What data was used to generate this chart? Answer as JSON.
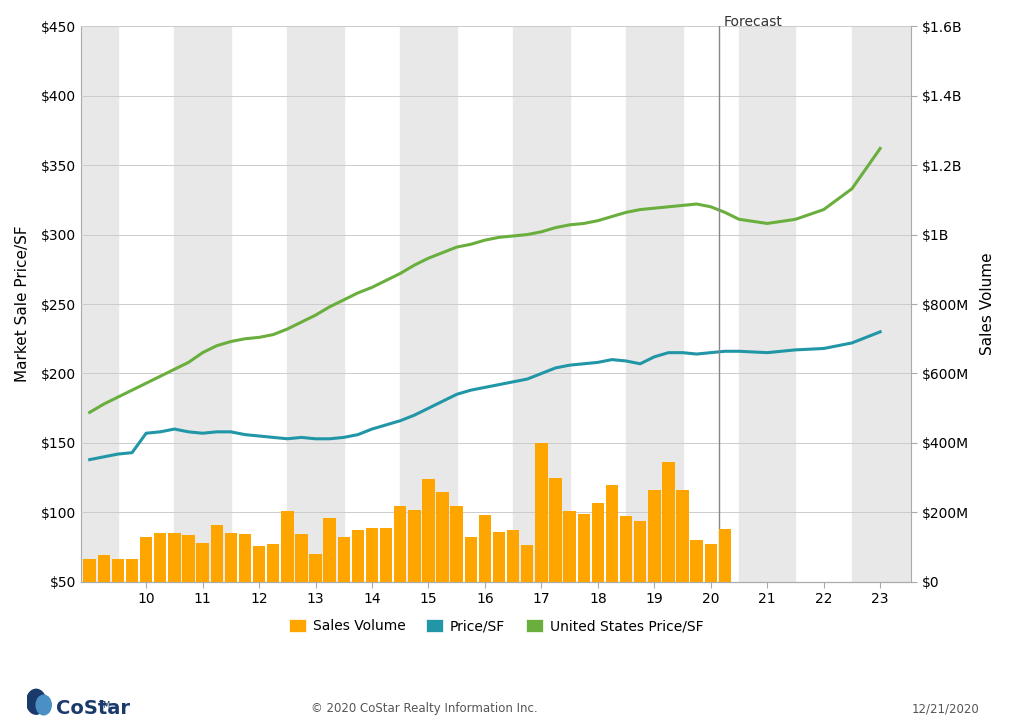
{
  "ylabel_left": "Market Sale Price/SF",
  "ylabel_right": "Sales Volume",
  "background_color": "#ffffff",
  "plot_bg_color": "#ffffff",
  "bar_color": "#FFA500",
  "line_price_color": "#2196A6",
  "line_us_color": "#6AAF3D",
  "forecast_line_color": "#888888",
  "forecast_label": "Forecast",
  "x_ticks": [
    10,
    11,
    12,
    13,
    14,
    15,
    16,
    17,
    18,
    19,
    20,
    21,
    22,
    23
  ],
  "bar_positions": [
    9.0,
    9.25,
    9.5,
    9.75,
    10.0,
    10.25,
    10.5,
    10.75,
    11.0,
    11.25,
    11.5,
    11.75,
    12.0,
    12.25,
    12.5,
    12.75,
    13.0,
    13.25,
    13.5,
    13.75,
    14.0,
    14.25,
    14.5,
    14.75,
    15.0,
    15.25,
    15.5,
    15.75,
    16.0,
    16.25,
    16.5,
    16.75,
    17.0,
    17.25,
    17.5,
    17.75,
    18.0,
    18.25,
    18.5,
    18.75,
    19.0,
    19.25,
    19.5,
    19.75,
    20.0,
    20.25
  ],
  "bar_heights_millions": [
    65,
    78,
    66,
    66,
    130,
    142,
    140,
    136,
    112,
    165,
    142,
    138,
    104,
    108,
    205,
    138,
    80,
    184,
    128,
    150,
    155,
    155,
    218,
    208,
    295,
    258,
    219,
    130,
    192,
    145,
    150,
    107,
    400,
    300,
    205,
    196,
    226,
    280,
    191,
    176,
    265,
    345,
    264,
    121,
    109,
    151
  ],
  "price_sf_x": [
    9.0,
    9.25,
    9.5,
    9.75,
    10.0,
    10.25,
    10.5,
    10.75,
    11.0,
    11.25,
    11.5,
    11.75,
    12.0,
    12.25,
    12.5,
    12.75,
    13.0,
    13.25,
    13.5,
    13.75,
    14.0,
    14.25,
    14.5,
    14.75,
    15.0,
    15.25,
    15.5,
    15.75,
    16.0,
    16.25,
    16.5,
    16.75,
    17.0,
    17.25,
    17.5,
    17.75,
    18.0,
    18.25,
    18.5,
    18.75,
    19.0,
    19.25,
    19.5,
    19.75,
    20.0,
    20.25,
    20.5,
    21.0,
    21.5,
    22.0,
    22.5,
    23.0
  ],
  "price_sf_y": [
    138,
    140,
    142,
    143,
    157,
    158,
    160,
    158,
    157,
    158,
    158,
    156,
    155,
    154,
    153,
    154,
    153,
    153,
    154,
    156,
    160,
    163,
    166,
    170,
    175,
    180,
    185,
    188,
    190,
    192,
    194,
    196,
    200,
    204,
    206,
    207,
    208,
    210,
    209,
    207,
    212,
    215,
    215,
    214,
    215,
    216,
    216,
    215,
    217,
    218,
    222,
    230
  ],
  "us_price_sf_x": [
    9.0,
    9.25,
    9.5,
    9.75,
    10.0,
    10.25,
    10.5,
    10.75,
    11.0,
    11.25,
    11.5,
    11.75,
    12.0,
    12.25,
    12.5,
    12.75,
    13.0,
    13.25,
    13.5,
    13.75,
    14.0,
    14.25,
    14.5,
    14.75,
    15.0,
    15.25,
    15.5,
    15.75,
    16.0,
    16.25,
    16.5,
    16.75,
    17.0,
    17.25,
    17.5,
    17.75,
    18.0,
    18.25,
    18.5,
    18.75,
    19.0,
    19.25,
    19.5,
    19.75,
    20.0,
    20.25,
    20.5,
    21.0,
    21.5,
    22.0,
    22.5,
    23.0
  ],
  "us_price_sf_y": [
    172,
    178,
    183,
    188,
    193,
    198,
    203,
    208,
    215,
    220,
    223,
    225,
    226,
    228,
    232,
    237,
    242,
    248,
    253,
    258,
    262,
    267,
    272,
    278,
    283,
    287,
    291,
    293,
    296,
    298,
    299,
    300,
    302,
    305,
    307,
    308,
    310,
    313,
    316,
    318,
    319,
    320,
    321,
    322,
    320,
    316,
    311,
    308,
    311,
    318,
    333,
    362
  ],
  "ylim_left": [
    50,
    450
  ],
  "ylim_right": [
    0,
    1600
  ],
  "xlim": [
    8.85,
    23.55
  ],
  "forecast_x": 20.15,
  "bar_width": 0.22,
  "shaded_bands": [
    [
      8.85,
      9.5
    ],
    [
      10.5,
      11.5
    ],
    [
      12.5,
      13.5
    ],
    [
      14.5,
      15.5
    ],
    [
      16.5,
      17.5
    ],
    [
      18.5,
      19.5
    ],
    [
      20.5,
      21.5
    ],
    [
      22.5,
      23.55
    ]
  ],
  "right_ticks": [
    0,
    200,
    400,
    600,
    800,
    1000,
    1200,
    1400,
    1600
  ],
  "right_tick_labels": [
    "$0",
    "$200M",
    "$400M",
    "$600M",
    "$800M",
    "$1B",
    "$1.2B",
    "$1.4B",
    "$1.6B"
  ],
  "left_ticks": [
    50,
    100,
    150,
    200,
    250,
    300,
    350,
    400,
    450
  ],
  "left_tick_labels": [
    "$50",
    "$100",
    "$150",
    "$200",
    "$250",
    "$300",
    "$350",
    "$400",
    "$450"
  ],
  "legend_items": [
    "Sales Volume",
    "Price/SF",
    "United States Price/SF"
  ],
  "copyright_text": "© 2020 CoStar Realty Information Inc.",
  "date_text": "12/21/2020",
  "costar_text": "CoStar",
  "shaded_color": "#e8e8e8",
  "grid_color": "#cccccc",
  "tick_label_size": 10,
  "axis_label_size": 11
}
